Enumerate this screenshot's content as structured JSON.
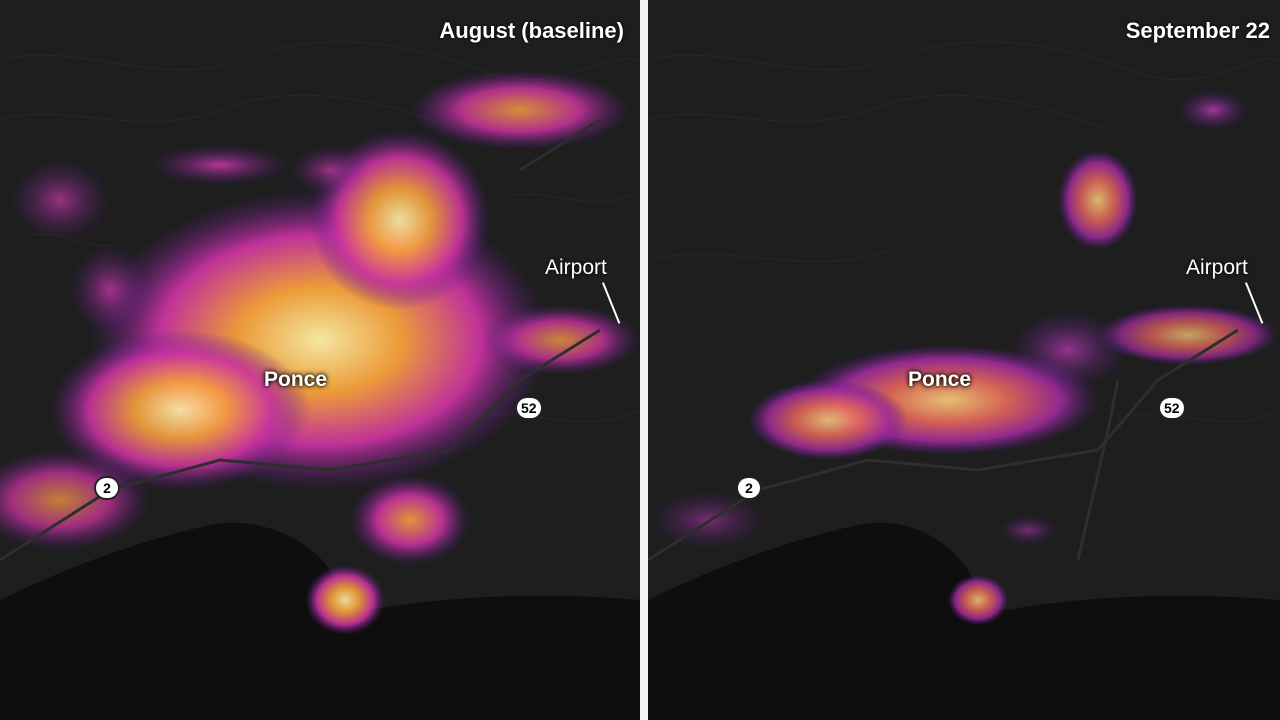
{
  "panels": [
    {
      "title": "August (baseline)",
      "place_label": "Ponce",
      "airport_label": "Airport",
      "route_52": "52",
      "route_2": "2"
    },
    {
      "title": "September 22",
      "place_label": "Ponce",
      "airport_label": "Airport",
      "route_52": "52",
      "route_2": "2"
    }
  ],
  "colors": {
    "background_land": "#1e1e1e",
    "sea": "#0e0e0e",
    "light_low": "#5a1e8c",
    "light_mid": "#c9329f",
    "light_high": "#f7a23a",
    "light_peak": "#fff1a8",
    "divider": "#f4f4f4"
  }
}
